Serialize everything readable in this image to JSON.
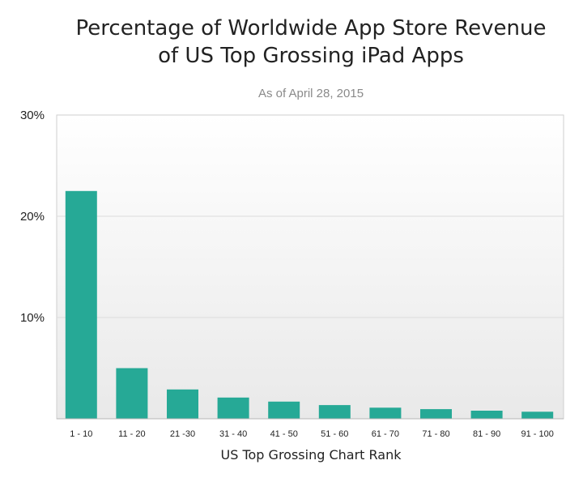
{
  "chart_data": {
    "type": "bar",
    "title_lines": [
      "Percentage of Worldwide App Store Revenue",
      "of US Top Grossing iPad Apps"
    ],
    "subtitle": "As of April 28, 2015",
    "xlabel": "US Top Grossing Chart Rank",
    "ylabel": "",
    "categories": [
      "1 - 10",
      "11 - 20",
      "21 -30",
      "31 - 40",
      "41 - 50",
      "51 - 60",
      "61 - 70",
      "71 - 80",
      "81 - 90",
      "91 - 100"
    ],
    "values": [
      22.5,
      5.0,
      2.9,
      2.1,
      1.7,
      1.35,
      1.1,
      0.95,
      0.8,
      0.7
    ],
    "unit": "%",
    "ylim": [
      0,
      30
    ],
    "yticks": [
      10,
      20,
      30
    ],
    "ytick_labels": [
      "10%",
      "20%",
      "30%"
    ],
    "grid": true,
    "legend": "none",
    "bar_color": "#26a996"
  }
}
